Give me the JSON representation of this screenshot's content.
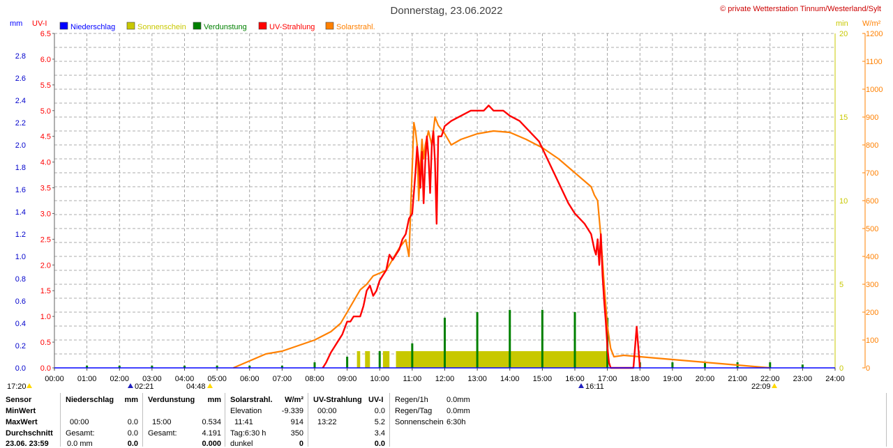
{
  "header": {
    "title": "Donnerstag, 23.06.2022",
    "copyright": "© private Wetterstation Tinnum/Westerland/Sylt",
    "unit_mm": "mm",
    "unit_uvi": "UV-I",
    "unit_min": "min",
    "unit_wm2": "W/m²"
  },
  "legend": [
    {
      "label": "Niederschlag",
      "color": "#0000ff"
    },
    {
      "label": "Sonnenschein",
      "color": "#c8c800"
    },
    {
      "label": "Verdunstung",
      "color": "#008000"
    },
    {
      "label": "UV-Strahlung",
      "color": "#ff0000"
    },
    {
      "label": "Solarstrahl.",
      "color": "#ff8000"
    }
  ],
  "axes": {
    "mm_ticks": [
      "0.0",
      "0.2",
      "0.4",
      "0.6",
      "0.8",
      "1.0",
      "1.2",
      "1.4",
      "1.6",
      "1.8",
      "2.0",
      "2.2",
      "2.4",
      "2.6",
      "2.8"
    ],
    "uvi_ticks": [
      "0.0",
      "0.5",
      "1.0",
      "1.5",
      "2.0",
      "2.5",
      "3.0",
      "3.5",
      "4.0",
      "4.5",
      "5.0",
      "5.5",
      "6.0",
      "6.5"
    ],
    "min_ticks": [
      "0",
      "5",
      "10",
      "15",
      "20"
    ],
    "wm2_ticks": [
      "0",
      "100",
      "200",
      "300",
      "400",
      "500",
      "600",
      "700",
      "800",
      "900",
      "1000",
      "1100",
      "1200"
    ],
    "x_ticks": [
      "00:00",
      "01:00",
      "02:00",
      "03:00",
      "04:00",
      "05:00",
      "06:00",
      "07:00",
      "08:00",
      "09:00",
      "10:00",
      "11:00",
      "12:00",
      "13:00",
      "14:00",
      "15:00",
      "16:00",
      "17:00",
      "18:00",
      "19:00",
      "20:00",
      "21:00",
      "22:00",
      "23:00",
      "24:00"
    ],
    "sun_events": [
      "17:20",
      "02:21",
      "04:48",
      "16:11",
      "22:09"
    ]
  },
  "chart_data": {
    "type": "line",
    "title": "Donnerstag, 23.06.2022",
    "x_range": [
      "00:00",
      "24:00"
    ],
    "ylim_uvi": [
      0,
      6.5
    ],
    "ylim_mm": [
      0,
      3.0
    ],
    "ylim_min": [
      0,
      20
    ],
    "ylim_wm2": [
      0,
      1200
    ],
    "grid": true,
    "series": [
      {
        "name": "UV-Strahlung",
        "color": "#ff0000",
        "axis": "UV-I",
        "x": [
          8.25,
          8.35,
          8.5,
          8.6,
          8.7,
          8.85,
          9.0,
          9.1,
          9.2,
          9.3,
          9.4,
          9.5,
          9.6,
          9.7,
          9.8,
          9.9,
          10.0,
          10.1,
          10.2,
          10.3,
          10.4,
          10.5,
          10.6,
          10.7,
          10.8,
          10.9,
          11.0,
          11.05,
          11.1,
          11.15,
          11.2,
          11.25,
          11.3,
          11.35,
          11.4,
          11.45,
          11.5,
          11.55,
          11.6,
          11.65,
          11.7,
          11.75,
          11.8,
          11.85,
          11.9,
          11.95,
          12.0,
          12.2,
          12.5,
          12.8,
          13.0,
          13.2,
          13.35,
          13.5,
          13.8,
          14.0,
          14.3,
          14.6,
          14.9,
          15.2,
          15.5,
          15.8,
          16.0,
          16.3,
          16.5,
          16.6,
          16.65,
          16.7,
          16.75,
          16.8,
          16.85,
          16.9,
          16.95,
          17.0,
          17.05,
          17.1,
          17.15,
          17.2,
          17.4,
          17.6,
          17.8,
          17.9,
          18.0
        ],
        "values": [
          0,
          0.1,
          0.3,
          0.4,
          0.5,
          0.65,
          0.9,
          0.9,
          1.0,
          1.0,
          1.0,
          1.2,
          1.5,
          1.6,
          1.4,
          1.5,
          1.7,
          1.8,
          1.9,
          2.2,
          2.1,
          2.2,
          2.3,
          2.5,
          2.6,
          2.9,
          3.0,
          3.4,
          3.8,
          4.3,
          4.0,
          3.5,
          4.2,
          3.2,
          4.0,
          4.5,
          4.1,
          3.4,
          4.3,
          4.6,
          4.0,
          2.8,
          4.5,
          4.5,
          4.5,
          4.6,
          4.7,
          4.8,
          4.9,
          5.0,
          5.0,
          5.0,
          5.1,
          5.0,
          5.0,
          4.9,
          4.8,
          4.6,
          4.4,
          4.0,
          3.6,
          3.2,
          3.0,
          2.8,
          2.6,
          2.3,
          2.2,
          2.5,
          2.0,
          2.6,
          1.8,
          1.3,
          0.9,
          0.4,
          0.1,
          0,
          0,
          0,
          0,
          0,
          0,
          0.8,
          0
        ]
      },
      {
        "name": "Solarstrahl.",
        "color": "#ff8000",
        "axis": "W/m²",
        "x": [
          5.5,
          6.0,
          6.5,
          7.0,
          7.5,
          8.0,
          8.5,
          8.8,
          9.0,
          9.2,
          9.4,
          9.6,
          9.8,
          10.0,
          10.2,
          10.4,
          10.6,
          10.8,
          10.9,
          11.0,
          11.05,
          11.1,
          11.15,
          11.2,
          11.25,
          11.3,
          11.35,
          11.4,
          11.5,
          11.6,
          11.7,
          11.8,
          12.0,
          12.2,
          12.5,
          13.0,
          13.5,
          14.0,
          14.5,
          15.0,
          15.5,
          16.0,
          16.3,
          16.5,
          16.6,
          16.7,
          16.8,
          16.9,
          17.0,
          17.1,
          17.2,
          17.5,
          18.0,
          18.5,
          19.0,
          19.5,
          20.0,
          20.5,
          21.0,
          21.5,
          22.0
        ],
        "values": [
          0,
          25,
          50,
          60,
          80,
          100,
          130,
          160,
          200,
          240,
          280,
          300,
          330,
          340,
          350,
          390,
          430,
          460,
          400,
          720,
          880,
          850,
          800,
          600,
          720,
          820,
          750,
          800,
          850,
          800,
          900,
          870,
          840,
          800,
          820,
          840,
          850,
          845,
          820,
          790,
          750,
          700,
          670,
          650,
          620,
          600,
          470,
          300,
          150,
          70,
          40,
          45,
          40,
          35,
          30,
          25,
          20,
          15,
          10,
          5,
          0
        ]
      },
      {
        "name": "Sonnenschein",
        "color": "#c8c800",
        "axis": "min",
        "blocks": [
          [
            9.3,
            9.4,
            1.0
          ],
          [
            9.55,
            9.7,
            1.0
          ],
          [
            10.1,
            10.3,
            1.0
          ],
          [
            10.5,
            11.0,
            1.0
          ],
          [
            11.0,
            17.0,
            1.0
          ]
        ]
      },
      {
        "name": "Verdunstung",
        "color": "#008000",
        "axis": "mm",
        "x": [
          1,
          2,
          3,
          4,
          5,
          6,
          7,
          8,
          9,
          10,
          11,
          12,
          13,
          14,
          15,
          16,
          17,
          18,
          19,
          20,
          21,
          22,
          23
        ],
        "values": [
          0.02,
          0.02,
          0.02,
          0.02,
          0.02,
          0.02,
          0.02,
          0.05,
          0.1,
          0.15,
          0.22,
          0.45,
          0.5,
          0.52,
          0.52,
          0.5,
          0.45,
          0.05,
          0.05,
          0.05,
          0.05,
          0.05,
          0.03
        ]
      },
      {
        "name": "Niederschlag",
        "color": "#0000ff",
        "axis": "mm",
        "x": [],
        "values": []
      }
    ]
  },
  "table": {
    "rows_label": [
      "Sensor",
      "MinWert",
      "MaxWert",
      "Durchschnitt",
      "23.06. 23:59"
    ],
    "niederschlag": {
      "title": "Niederschlag",
      "unit": "mm",
      "max_time": "00:00",
      "max_val": "0.0",
      "avg_label": "Gesamt:",
      "avg_val": "0.0",
      "last_label": "0.0 mm",
      "last_val": "0.0"
    },
    "verdunstung": {
      "title": "Verdunstung",
      "unit": "mm",
      "max_time": "15:00",
      "max_val": "0.534",
      "avg_label": "Gesamt:",
      "avg_val": "4.191",
      "last_val": "0.000"
    },
    "solar": {
      "title": "Solarstrahl.",
      "unit": "W/m²",
      "min_label": "Elevation",
      "min_val": "-9.339",
      "max_time": "11:41",
      "max_val": "914",
      "avg_label": "Tag:6:30 h",
      "avg_val": "350",
      "last_label": "dunkel",
      "last_val": "0"
    },
    "uv": {
      "title": "UV-Strahlung",
      "unit": "UV-I",
      "min_time": "00:00",
      "min_val": "0.0",
      "max_time": "13:22",
      "max_val": "5.2",
      "avg_val": "3.4",
      "last_val": "0.0"
    },
    "regen": {
      "r1_label": "Regen/1h",
      "r1_val": "0.0mm",
      "r2_label": "Regen/Tag",
      "r2_val": "0.0mm",
      "r3_label": "Sonnenschein",
      "r3_val": "6:30h"
    }
  }
}
